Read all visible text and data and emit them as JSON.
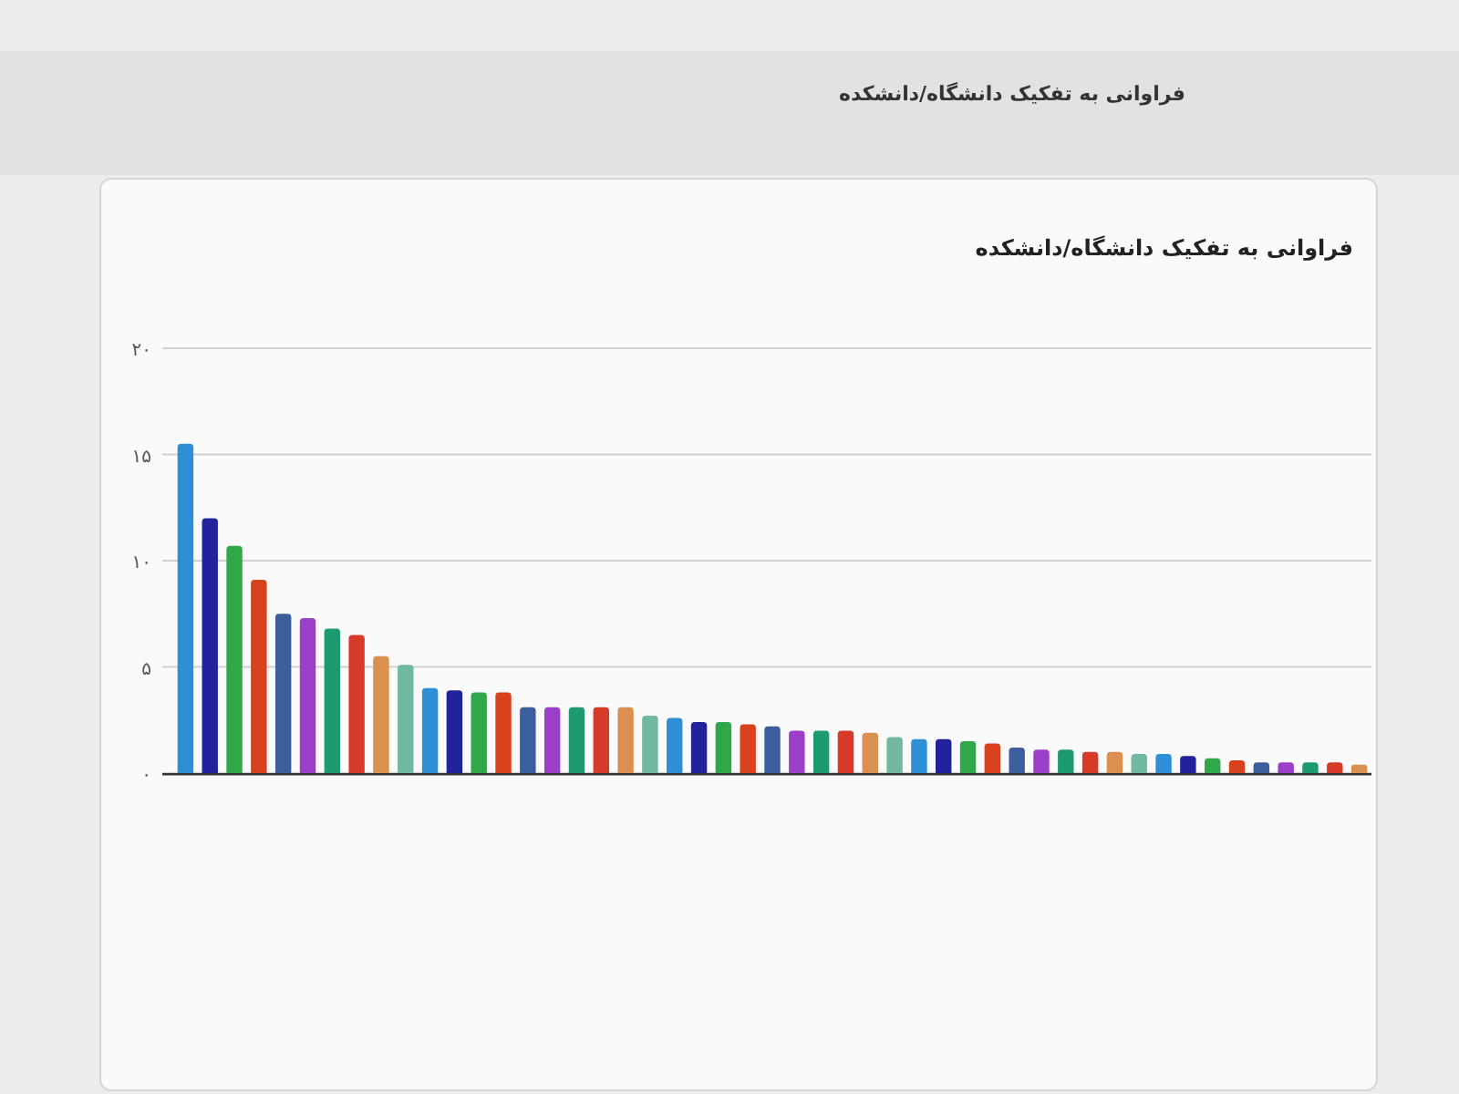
{
  "chart_data": {
    "type": "bar",
    "title": "فراوانی به تفکیک دانشگاه/دانشکده",
    "annotations": [
      "فراوانی به تفکیک دانشگاه/دانشکده"
    ],
    "categories": [
      null,
      null,
      null,
      null,
      null,
      null,
      null,
      null,
      null,
      null,
      null,
      null,
      null,
      null,
      null,
      null,
      null,
      null,
      null,
      null,
      null,
      null,
      null,
      null,
      null,
      null,
      null,
      null,
      null,
      null,
      null,
      null,
      null,
      null,
      null,
      null,
      null,
      null,
      null,
      null,
      null,
      null,
      null,
      null,
      null,
      null,
      null,
      null,
      null
    ],
    "values": [
      15.5,
      12,
      10.7,
      9.1,
      7.5,
      7.3,
      6.8,
      6.5,
      5.5,
      5.1,
      4,
      3.9,
      3.8,
      3.8,
      3.1,
      3.1,
      3.1,
      3.1,
      3.1,
      2.7,
      2.6,
      2.4,
      2.4,
      2.3,
      2.2,
      2,
      2,
      2,
      1.9,
      1.7,
      1.6,
      1.6,
      1.5,
      1.4,
      1.2,
      1.1,
      1.1,
      1,
      1,
      0.9,
      0.9,
      0.8,
      0.7,
      0.6,
      0.5,
      0.5,
      0.5,
      0.5,
      0.4
    ],
    "colors": [
      "#2f8fd6",
      "#22229a",
      "#2fa84a",
      "#d8411e",
      "#3d5e9c",
      "#9b3ec8",
      "#1e9a70",
      "#d83a2a",
      "#d99050",
      "#70b8a0",
      "#2f8fd6",
      "#22229a",
      "#2fa84a",
      "#d8411e",
      "#3d5e9c",
      "#9b3ec8",
      "#1e9a70",
      "#d83a2a",
      "#d99050",
      "#70b8a0",
      "#2f8fd6",
      "#22229a",
      "#2fa84a",
      "#d8411e",
      "#3d5e9c",
      "#9b3ec8",
      "#1e9a70",
      "#d83a2a",
      "#d99050",
      "#70b8a0",
      "#2f8fd6",
      "#22229a",
      "#2fa84a",
      "#d8411e",
      "#3d5e9c",
      "#9b3ec8",
      "#1e9a70",
      "#d83a2a",
      "#d99050",
      "#70b8a0",
      "#2f8fd6",
      "#22229a",
      "#2fa84a",
      "#d8411e",
      "#3d5e9c",
      "#9b3ec8",
      "#1e9a70",
      "#d83a2a",
      "#d99050"
    ],
    "ylim": [
      0,
      20
    ],
    "yticks": [
      {
        "value": 0,
        "label": "۰"
      },
      {
        "value": 5,
        "label": "۵"
      },
      {
        "value": 10,
        "label": "۱۰"
      },
      {
        "value": 15,
        "label": "۱۵"
      },
      {
        "value": 20,
        "label": "۲۰"
      }
    ],
    "grid": "y"
  }
}
